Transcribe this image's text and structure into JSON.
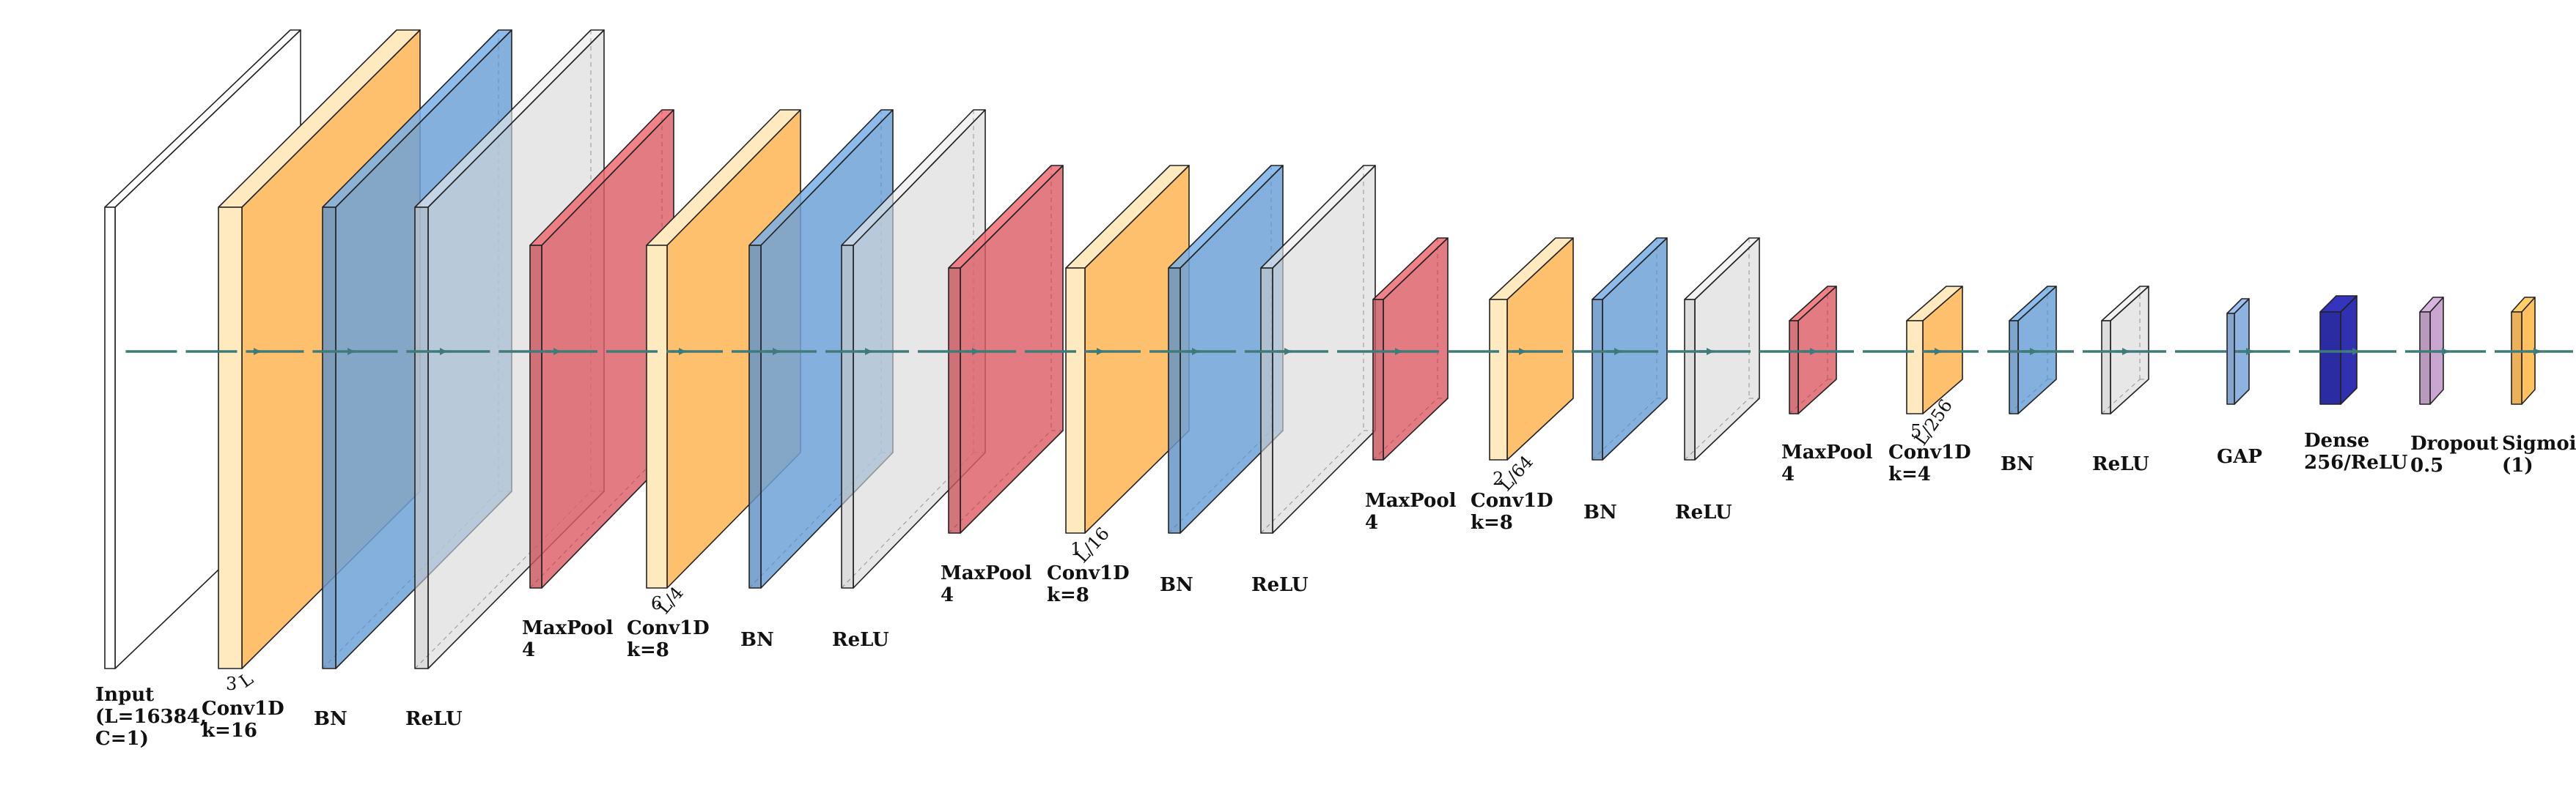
{
  "colors": {
    "input": "#ffffff",
    "conv": "#ffc06e",
    "conv_side": "#ffe9bf",
    "bn": "#6fa2d8",
    "relu": "#d9d9d9",
    "maxpool": "#dc5f66",
    "gap": "#8fb3e0",
    "dense": "#3030b0",
    "dropout": "#c9a6cf",
    "sigmoid": "#ffc060",
    "arrow": "#3f7b78",
    "edge": "#222222"
  },
  "layers": [
    {
      "id": "input",
      "kind": "input",
      "label": [
        "Input",
        "(L=16384,",
        "C=1)"
      ]
    },
    {
      "id": "conv1",
      "kind": "conv",
      "label": [
        "Conv1D",
        "k=16"
      ],
      "dims": [
        "3",
        "L"
      ]
    },
    {
      "id": "bn1",
      "kind": "bn",
      "label": [
        "BN"
      ]
    },
    {
      "id": "relu1",
      "kind": "relu",
      "label": [
        "ReLU"
      ]
    },
    {
      "id": "pool1",
      "kind": "maxpool",
      "label": [
        "MaxPool",
        "4"
      ]
    },
    {
      "id": "conv2",
      "kind": "conv",
      "label": [
        "Conv1D",
        "k=8"
      ],
      "dims": [
        "6",
        "L/4"
      ]
    },
    {
      "id": "bn2",
      "kind": "bn",
      "label": [
        "BN"
      ]
    },
    {
      "id": "relu2",
      "kind": "relu",
      "label": [
        "ReLU"
      ]
    },
    {
      "id": "pool2",
      "kind": "maxpool",
      "label": [
        "MaxPool",
        "4"
      ]
    },
    {
      "id": "conv3",
      "kind": "conv",
      "label": [
        "Conv1D",
        "k=8"
      ],
      "dims": [
        "1",
        "L/16"
      ]
    },
    {
      "id": "bn3",
      "kind": "bn",
      "label": [
        "BN"
      ]
    },
    {
      "id": "relu3",
      "kind": "relu",
      "label": [
        "ReLU"
      ]
    },
    {
      "id": "pool3",
      "kind": "maxpool",
      "label": [
        "MaxPool",
        "4"
      ]
    },
    {
      "id": "conv4",
      "kind": "conv",
      "label": [
        "Conv1D",
        "k=8"
      ],
      "dims": [
        "2",
        "L/64"
      ]
    },
    {
      "id": "bn4",
      "kind": "bn",
      "label": [
        "BN"
      ]
    },
    {
      "id": "relu4",
      "kind": "relu",
      "label": [
        "ReLU"
      ]
    },
    {
      "id": "pool4",
      "kind": "maxpool",
      "label": [
        "MaxPool",
        "4"
      ]
    },
    {
      "id": "conv5",
      "kind": "conv",
      "label": [
        "Conv1D",
        "k=4"
      ],
      "dims": [
        "5",
        "L/256"
      ]
    },
    {
      "id": "bn5",
      "kind": "bn",
      "label": [
        "BN"
      ]
    },
    {
      "id": "relu5",
      "kind": "relu",
      "label": [
        "ReLU"
      ]
    },
    {
      "id": "gap",
      "kind": "gap",
      "label": [
        "GAP"
      ]
    },
    {
      "id": "dense",
      "kind": "dense",
      "label": [
        "Dense",
        "256/ReLU"
      ]
    },
    {
      "id": "dropout",
      "kind": "dropout",
      "label": [
        "Dropout",
        "0.5"
      ]
    },
    {
      "id": "sigmoid",
      "kind": "sigmoid",
      "label": [
        "Sigmoid",
        "(1)"
      ]
    }
  ]
}
